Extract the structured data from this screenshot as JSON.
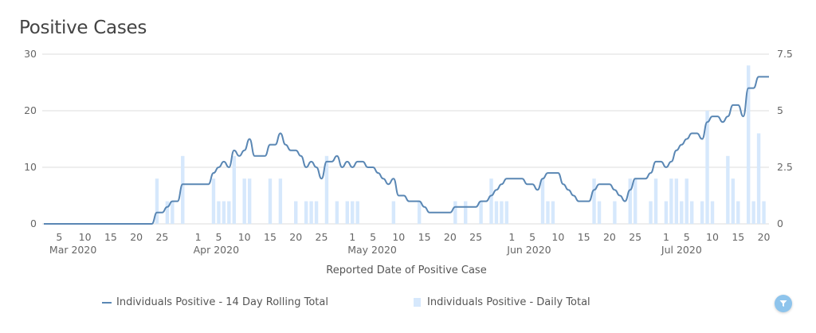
{
  "title": "Positive Cases",
  "legend": {
    "rolling": "Individuals Positive - 14 Day Rolling Total",
    "daily": "Individuals Positive - Daily Total"
  },
  "colors": {
    "line": "#5a87b4",
    "bar": "#d6e8fc",
    "grid": "#e3e3e3",
    "filter": "#8ec4ec"
  },
  "icons": {
    "filter": "filter-icon"
  },
  "chart_data": {
    "type": "bar+line",
    "title": "Positive Cases",
    "xlabel": "Reported Date of Positive Case",
    "ylabel_left": "",
    "ylabel_right": "",
    "x_range": [
      "2020-03-02",
      "2020-07-21"
    ],
    "ylim_left": [
      0,
      30
    ],
    "ylim_right": [
      0,
      7.5
    ],
    "y_ticks_left": [
      "0",
      "10",
      "20",
      "30"
    ],
    "y_ticks_right": [
      "0",
      "2.5",
      "5",
      "7.5"
    ],
    "grid": true,
    "legend_position": "bottom",
    "x_ticks": [
      [
        "2020-03-05",
        "5"
      ],
      [
        "2020-03-10",
        "10"
      ],
      [
        "2020-03-15",
        "15"
      ],
      [
        "2020-03-20",
        "20"
      ],
      [
        "2020-03-25",
        "25"
      ],
      [
        "2020-04-01",
        "1"
      ],
      [
        "2020-04-05",
        "5"
      ],
      [
        "2020-04-10",
        "10"
      ],
      [
        "2020-04-15",
        "15"
      ],
      [
        "2020-04-20",
        "20"
      ],
      [
        "2020-04-25",
        "25"
      ],
      [
        "2020-05-01",
        "1"
      ],
      [
        "2020-05-05",
        "5"
      ],
      [
        "2020-05-10",
        "10"
      ],
      [
        "2020-05-15",
        "15"
      ],
      [
        "2020-05-20",
        "20"
      ],
      [
        "2020-05-25",
        "25"
      ],
      [
        "2020-06-01",
        "1"
      ],
      [
        "2020-06-05",
        "5"
      ],
      [
        "2020-06-10",
        "10"
      ],
      [
        "2020-06-15",
        "15"
      ],
      [
        "2020-06-20",
        "20"
      ],
      [
        "2020-06-25",
        "25"
      ],
      [
        "2020-07-01",
        "1"
      ],
      [
        "2020-07-05",
        "5"
      ],
      [
        "2020-07-10",
        "10"
      ],
      [
        "2020-07-15",
        "15"
      ],
      [
        "2020-07-20",
        "20"
      ]
    ],
    "month_labels": [
      [
        "2020-03-04",
        "Mar 2020"
      ],
      [
        "2020-04-01",
        "Apr 2020"
      ],
      [
        "2020-05-01",
        "May 2020"
      ],
      [
        "2020-06-01",
        "Jun 2020"
      ],
      [
        "2020-07-01",
        "Jul 2020"
      ]
    ],
    "series": [
      {
        "name": "Individuals Positive - Daily Total",
        "type": "bar",
        "axis": "right",
        "values": [
          [
            "2020-03-24",
            2
          ],
          [
            "2020-03-26",
            1
          ],
          [
            "2020-03-27",
            1
          ],
          [
            "2020-03-29",
            3
          ],
          [
            "2020-04-04",
            2
          ],
          [
            "2020-04-05",
            1
          ],
          [
            "2020-04-06",
            1
          ],
          [
            "2020-04-07",
            1
          ],
          [
            "2020-04-08",
            3
          ],
          [
            "2020-04-10",
            2
          ],
          [
            "2020-04-11",
            2
          ],
          [
            "2020-04-15",
            2
          ],
          [
            "2020-04-17",
            2
          ],
          [
            "2020-04-20",
            1
          ],
          [
            "2020-04-22",
            1
          ],
          [
            "2020-04-23",
            1
          ],
          [
            "2020-04-24",
            1
          ],
          [
            "2020-04-26",
            3
          ],
          [
            "2020-04-28",
            1
          ],
          [
            "2020-04-30",
            1
          ],
          [
            "2020-05-01",
            1
          ],
          [
            "2020-05-02",
            1
          ],
          [
            "2020-05-09",
            1
          ],
          [
            "2020-05-14",
            1
          ],
          [
            "2020-05-21",
            1
          ],
          [
            "2020-05-23",
            1
          ],
          [
            "2020-05-26",
            1
          ],
          [
            "2020-05-28",
            2
          ],
          [
            "2020-05-29",
            1
          ],
          [
            "2020-05-30",
            1
          ],
          [
            "2020-05-31",
            1
          ],
          [
            "2020-06-07",
            2
          ],
          [
            "2020-06-08",
            1
          ],
          [
            "2020-06-09",
            1
          ],
          [
            "2020-06-17",
            2
          ],
          [
            "2020-06-18",
            1
          ],
          [
            "2020-06-21",
            1
          ],
          [
            "2020-06-24",
            2
          ],
          [
            "2020-06-25",
            2
          ],
          [
            "2020-06-28",
            1
          ],
          [
            "2020-06-29",
            2
          ],
          [
            "2020-07-01",
            1
          ],
          [
            "2020-07-02",
            2
          ],
          [
            "2020-07-03",
            2
          ],
          [
            "2020-07-04",
            1
          ],
          [
            "2020-07-05",
            2
          ],
          [
            "2020-07-06",
            1
          ],
          [
            "2020-07-08",
            1
          ],
          [
            "2020-07-09",
            5
          ],
          [
            "2020-07-10",
            1
          ],
          [
            "2020-07-13",
            3
          ],
          [
            "2020-07-14",
            2
          ],
          [
            "2020-07-15",
            1
          ],
          [
            "2020-07-17",
            7
          ],
          [
            "2020-07-18",
            1
          ],
          [
            "2020-07-19",
            4
          ],
          [
            "2020-07-20",
            1
          ]
        ]
      },
      {
        "name": "Individuals Positive - 14 Day Rolling Total",
        "type": "line",
        "axis": "left",
        "derived_from": "Individuals Positive - Daily Total",
        "rolling_window_days": 14
      }
    ]
  }
}
